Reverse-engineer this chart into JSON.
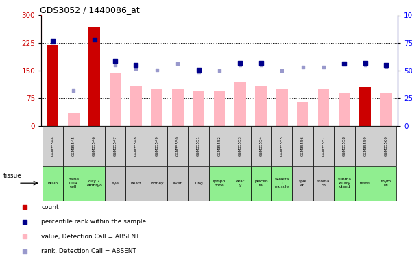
{
  "title": "GDS3052 / 1440086_at",
  "gsm_labels": [
    "GSM35544",
    "GSM35545",
    "GSM35546",
    "GSM35547",
    "GSM35548",
    "GSM35549",
    "GSM35550",
    "GSM35551",
    "GSM35552",
    "GSM35553",
    "GSM35554",
    "GSM35555",
    "GSM35556",
    "GSM35557",
    "GSM35558",
    "GSM35559",
    "GSM35560"
  ],
  "tissue_labels": [
    "brain",
    "naive\nCD4\ncell",
    "day 7\nembryo",
    "eye",
    "heart",
    "kidney",
    "liver",
    "lung",
    "lymph\nnode",
    "ovar\ny",
    "placen\nta",
    "skeleta\nl\nmuscle",
    "sple\nen",
    "stoma\nch",
    "subma\nxillary\ngland",
    "testis",
    "thym\nus"
  ],
  "tissue_green_idx": [
    0,
    1,
    2,
    8,
    9,
    10,
    11,
    14,
    15,
    16
  ],
  "tissue_gray_idx": [
    3,
    4,
    5,
    6,
    7,
    12,
    13
  ],
  "red_bar_idx": [
    0,
    2,
    15
  ],
  "red_bar_values": [
    220,
    270,
    105
  ],
  "pink_bar_idx": [
    1,
    3,
    4,
    5,
    6,
    7,
    8,
    9,
    10,
    11,
    12,
    13,
    14,
    16
  ],
  "pink_bar_values": [
    35,
    145,
    110,
    100,
    100,
    95,
    95,
    120,
    110,
    100,
    65,
    100,
    90,
    90
  ],
  "blue_dot_idx": [
    0,
    2,
    3,
    4,
    7,
    9,
    10,
    14,
    15,
    16
  ],
  "blue_dot_values": [
    77,
    78,
    59,
    55,
    51,
    57,
    57,
    56,
    57,
    55
  ],
  "light_blue_dot_idx": [
    1,
    3,
    4,
    5,
    6,
    7,
    8,
    9,
    10,
    11,
    12,
    13,
    14,
    15,
    16
  ],
  "light_blue_dot_values": [
    32,
    55,
    52,
    51,
    56,
    49,
    50,
    55,
    55,
    50,
    53,
    53,
    56,
    55,
    54
  ],
  "ylim_left": [
    0,
    300
  ],
  "ylim_right": [
    0,
    100
  ],
  "yticks_left": [
    0,
    75,
    150,
    225,
    300
  ],
  "yticks_right": [
    0,
    25,
    50,
    75,
    100
  ],
  "yticklabels_right": [
    "0",
    "25",
    "50",
    "75",
    "100%"
  ],
  "red_color": "#CC0000",
  "pink_color": "#FFB6C1",
  "blue_color": "#00008B",
  "light_blue_color": "#9999CC",
  "tissue_green_color": "#90EE90",
  "tissue_gray_color": "#C8C8C8",
  "gsm_row_color": "#D0D0D0",
  "fig_bg": "#FFFFFF"
}
